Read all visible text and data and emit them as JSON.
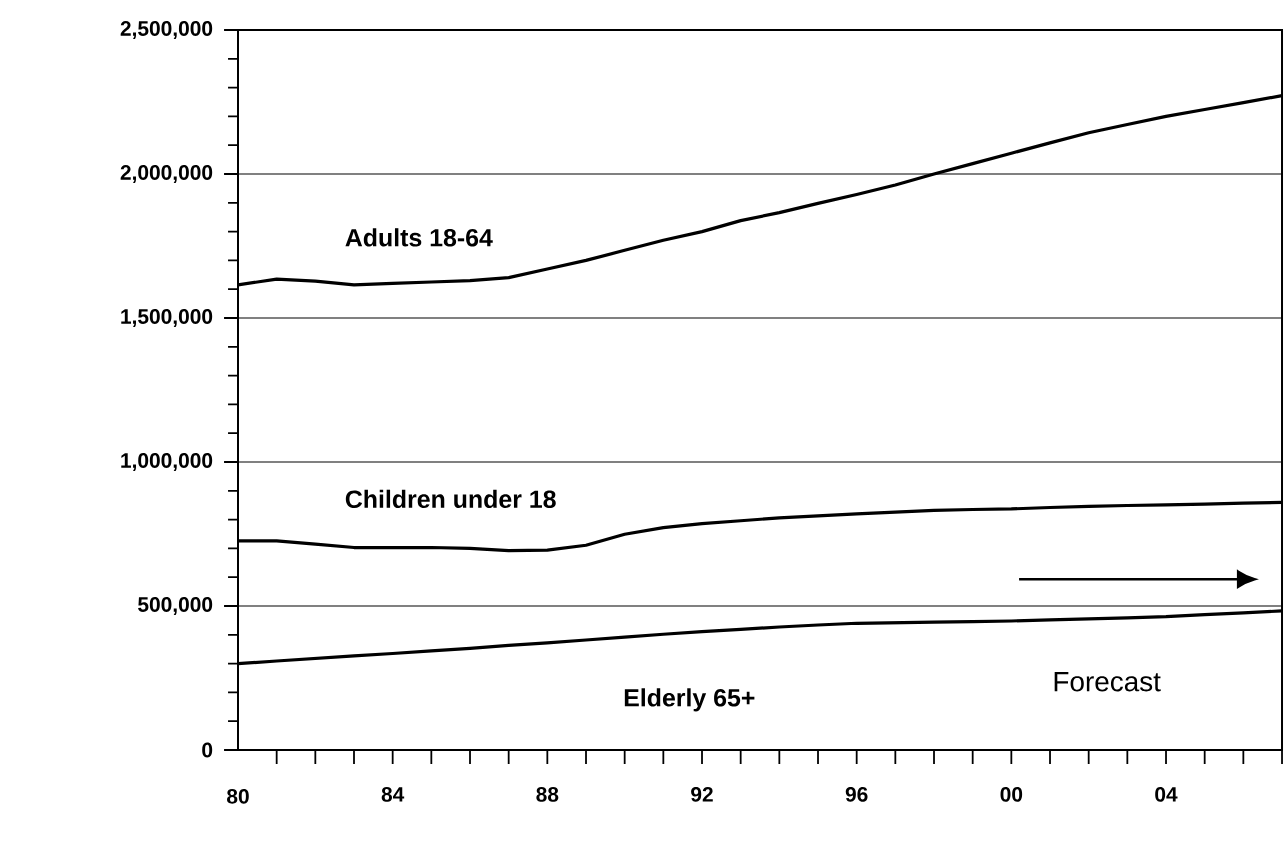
{
  "chart_data": {
    "type": "line",
    "categories": [
      "80",
      null,
      null,
      null,
      "84",
      null,
      null,
      null,
      "88",
      null,
      null,
      null,
      "92",
      null,
      null,
      null,
      "96",
      null,
      null,
      null,
      "00",
      null,
      null,
      null,
      "04",
      null,
      null,
      null
    ],
    "series": [
      {
        "name": "Adults 18-64",
        "color": "#000000",
        "values": [
          1615000,
          1635000,
          1628000,
          1615000,
          1620000,
          1625000,
          1630000,
          1640000,
          1670000,
          1700000,
          1735000,
          1770000,
          1800000,
          1838000,
          1866000,
          1898000,
          1929000,
          1962000,
          2000000,
          2036000,
          2072000,
          2108000,
          2143000,
          2172000,
          2200000,
          2224000,
          2248000,
          2272000
        ]
      },
      {
        "name": "Children under 18",
        "color": "#000000",
        "values": [
          726000,
          726000,
          715000,
          703000,
          703000,
          703000,
          700000,
          692000,
          694000,
          711000,
          749000,
          772000,
          786000,
          796000,
          806000,
          813000,
          820000,
          826000,
          832000,
          835000,
          837000,
          842000,
          846000,
          849000,
          851000,
          854000,
          857000,
          860000
        ]
      },
      {
        "name": "Elderly 65+",
        "color": "#000000",
        "values": [
          300000,
          309000,
          318000,
          327000,
          335000,
          344000,
          353000,
          363000,
          372000,
          382000,
          392000,
          402000,
          411000,
          419000,
          427000,
          434000,
          440000,
          442000,
          444000,
          446000,
          448000,
          452000,
          455000,
          459000,
          463000,
          470000,
          476000,
          483000
        ]
      }
    ],
    "ylim": [
      0,
      2500000
    ],
    "yticks": [
      {
        "value": 0,
        "label": "0"
      },
      {
        "value": 500000,
        "label": "500,000"
      },
      {
        "value": 1000000,
        "label": "1,000,000"
      },
      {
        "value": 1500000,
        "label": "1,500,000"
      },
      {
        "value": 2000000,
        "label": "2,000,000"
      },
      {
        "value": 2500000,
        "label": "2,500,000"
      }
    ],
    "grid": "y",
    "legend": false,
    "marker": "none",
    "line_style": "solid",
    "annotations": [
      "Forecast"
    ]
  }
}
